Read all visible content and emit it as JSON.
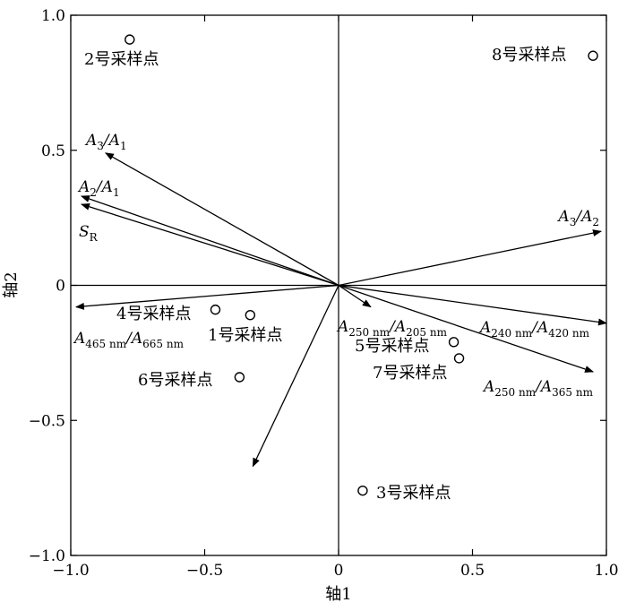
{
  "chart_data": {
    "type": "scatter",
    "subtype": "biplot",
    "xlabel": "轴1",
    "ylabel": "轴2",
    "xlim": [
      -1.0,
      1.0
    ],
    "ylim": [
      -1.0,
      1.0
    ],
    "xticks": [
      -1.0,
      -0.5,
      0,
      0.5,
      1.0
    ],
    "yticks": [
      -1.0,
      -0.5,
      0,
      0.5,
      1.0
    ],
    "xtick_labels": [
      "−1.0",
      "−0.5",
      "0",
      "0.5",
      "1.0"
    ],
    "ytick_labels": [
      "−1.0",
      "−0.5",
      "0",
      "0.5",
      "1.0"
    ],
    "grid": false,
    "points": [
      {
        "label": "1号采样点",
        "x": -0.33,
        "y": -0.11
      },
      {
        "label": "2号采样点",
        "x": -0.78,
        "y": 0.91
      },
      {
        "label": "3号采样点",
        "x": 0.09,
        "y": -0.76
      },
      {
        "label": "4号采样点",
        "x": -0.46,
        "y": -0.09
      },
      {
        "label": "5号采样点",
        "x": 0.43,
        "y": -0.21
      },
      {
        "label": "6号采样点",
        "x": -0.37,
        "y": -0.34
      },
      {
        "label": "7号采样点",
        "x": 0.45,
        "y": -0.27
      },
      {
        "label": "8号采样点",
        "x": 0.95,
        "y": 0.85
      }
    ],
    "vectors": [
      {
        "name": "A3/A1",
        "label_main": [
          "A",
          "3",
          "/A",
          "1"
        ],
        "x": -0.87,
        "y": 0.49
      },
      {
        "name": "A2/A1",
        "label_main": [
          "A",
          "2",
          "/A",
          "1"
        ],
        "x": -0.96,
        "y": 0.33
      },
      {
        "name": "SR",
        "label_main": [
          "S",
          "R"
        ],
        "x": -0.96,
        "y": 0.3
      },
      {
        "name": "A3/A2",
        "label_main": [
          "A",
          "3",
          "/A",
          "2"
        ],
        "x": 0.98,
        "y": 0.2
      },
      {
        "name": "A465nm/A665nm",
        "label_main": [
          "A",
          "465 nm",
          "/A",
          "665 nm"
        ],
        "x": -0.98,
        "y": -0.08
      },
      {
        "name": "A250nm/A205nm",
        "label_main": [
          "A",
          "250 nm",
          "/A",
          "205 nm"
        ],
        "x": 0.12,
        "y": -0.08
      },
      {
        "name": "A240nm/A420nm",
        "label_main": [
          "A",
          "240 nm",
          "/A",
          "420 nm"
        ],
        "x": 1.0,
        "y": -0.14
      },
      {
        "name": "A250nm/A365nm",
        "label_main": [
          "A",
          "250 nm",
          "/A",
          "365 nm"
        ],
        "x": 0.95,
        "y": -0.32
      },
      {
        "name": "",
        "label_main": [],
        "x": -0.32,
        "y": -0.67
      }
    ]
  }
}
